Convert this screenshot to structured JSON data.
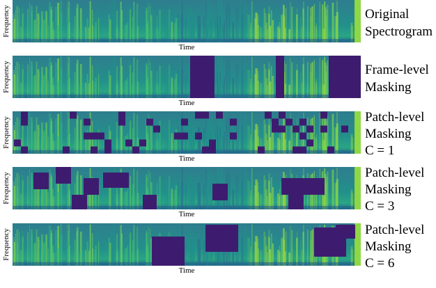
{
  "panels": [
    {
      "caption": [
        "Original",
        "Spectrogram"
      ],
      "y_label": "Frequency",
      "x_label": "Time"
    },
    {
      "caption": [
        "Frame-level",
        "Masking"
      ],
      "y_label": "Frequency",
      "x_label": "Time"
    },
    {
      "caption": [
        "Patch-level",
        "Masking",
        "C = 1"
      ],
      "y_label": "Frequency",
      "x_label": "Time"
    },
    {
      "caption": [
        "Patch-level",
        "Masking",
        "C = 3"
      ],
      "y_label": "Frequency",
      "x_label": "Time"
    },
    {
      "caption": [
        "Patch-level",
        "Masking",
        "C = 6"
      ],
      "y_label": "Frequency",
      "x_label": "Time"
    }
  ]
}
